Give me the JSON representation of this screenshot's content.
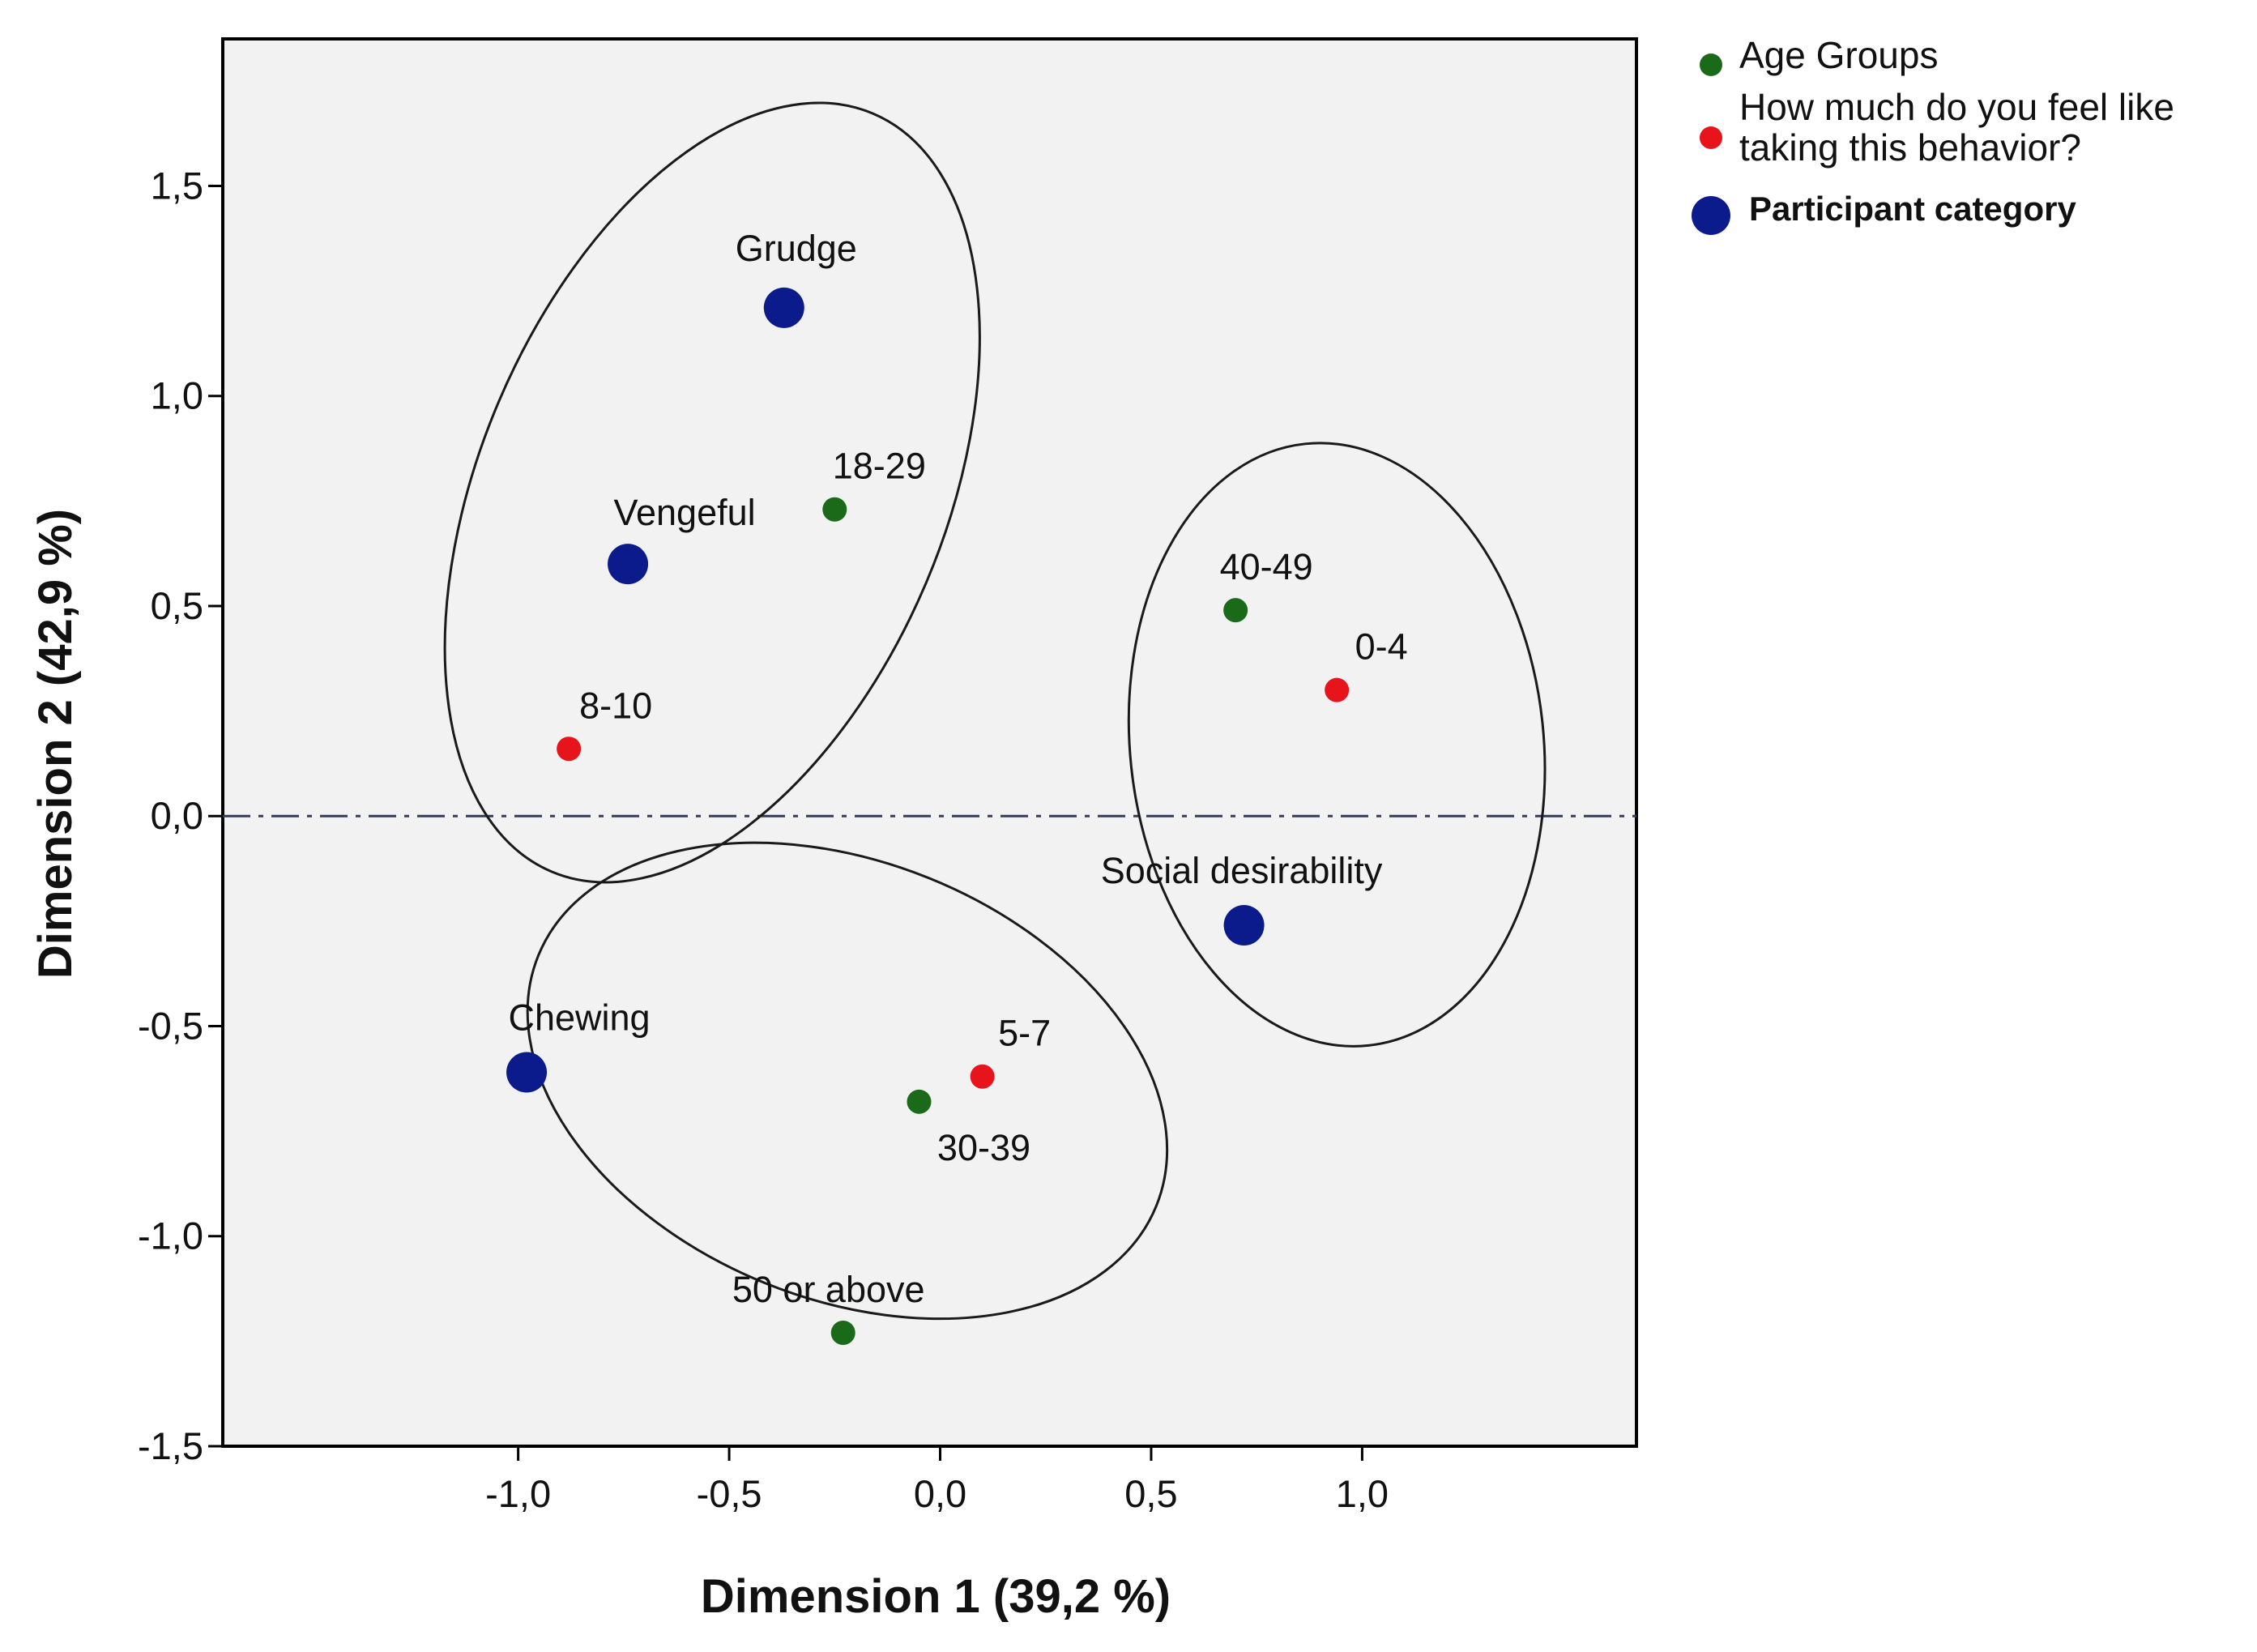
{
  "chart_data": {
    "type": "scatter",
    "xlabel": "Dimension 1 (39,2 %)",
    "ylabel": "Dimension 2 (42,9 %)",
    "xlim": [
      -1.7,
      1.65
    ],
    "ylim": [
      -1.5,
      1.85
    ],
    "x_ticks": [
      "-1,0",
      "-0,5",
      "0,0",
      "0,5",
      "1,0"
    ],
    "y_ticks": [
      "-1,5",
      "-1,0",
      "-0,5",
      "0,0",
      "0,5",
      "1,0",
      "1,5"
    ],
    "x_tick_values": [
      -1.0,
      -0.5,
      0.0,
      0.5,
      1.0
    ],
    "y_tick_values": [
      -1.5,
      -1.0,
      -0.5,
      0.0,
      0.5,
      1.0,
      1.5
    ],
    "reference_line": {
      "y": 0.0,
      "style": "dash-dot",
      "color": "#2f3e5c"
    },
    "grid": false,
    "legend_position": "outside top-right",
    "plot_background": "#f2f2f2",
    "series": [
      {
        "name": "Age Groups",
        "color": "#1a6a1a",
        "marker": "small",
        "points": [
          {
            "label": "18-29",
            "x": -0.25,
            "y": 0.73
          },
          {
            "label": "40-49",
            "x": 0.7,
            "y": 0.49
          },
          {
            "label": "30-39",
            "x": -0.05,
            "y": -0.68
          },
          {
            "label": "50 or above",
            "x": -0.23,
            "y": -1.23
          }
        ]
      },
      {
        "name": "How much do you feel like taking this behavior?",
        "legend_lines": [
          "How much do you feel like",
          "taking this behavior?"
        ],
        "color": "#e8141c",
        "marker": "small",
        "points": [
          {
            "label": "8-10",
            "x": -0.88,
            "y": 0.16
          },
          {
            "label": "0-4",
            "x": 0.94,
            "y": 0.3
          },
          {
            "label": "5-7",
            "x": 0.1,
            "y": -0.62
          }
        ]
      },
      {
        "name": "Participant category",
        "color": "#0c1b8c",
        "marker": "large",
        "points": [
          {
            "label": "Grudge",
            "x": -0.37,
            "y": 1.21
          },
          {
            "label": "Vengeful",
            "x": -0.74,
            "y": 0.6
          },
          {
            "label": "Social desirability",
            "x": 0.72,
            "y": -0.26
          },
          {
            "label": "Chewing",
            "x": -0.98,
            "y": -0.61
          }
        ]
      }
    ],
    "groupings": [
      {
        "cx": -0.54,
        "cy": 0.77,
        "rx": 0.55,
        "ry": 0.98,
        "rotation_deg": 23
      },
      {
        "cx": 0.94,
        "cy": 0.17,
        "rx": 0.49,
        "ry": 0.72,
        "rotation_deg": -6
      },
      {
        "cx": -0.22,
        "cy": -0.63,
        "rx": 0.79,
        "ry": 0.52,
        "rotation_deg": 22
      }
    ]
  }
}
